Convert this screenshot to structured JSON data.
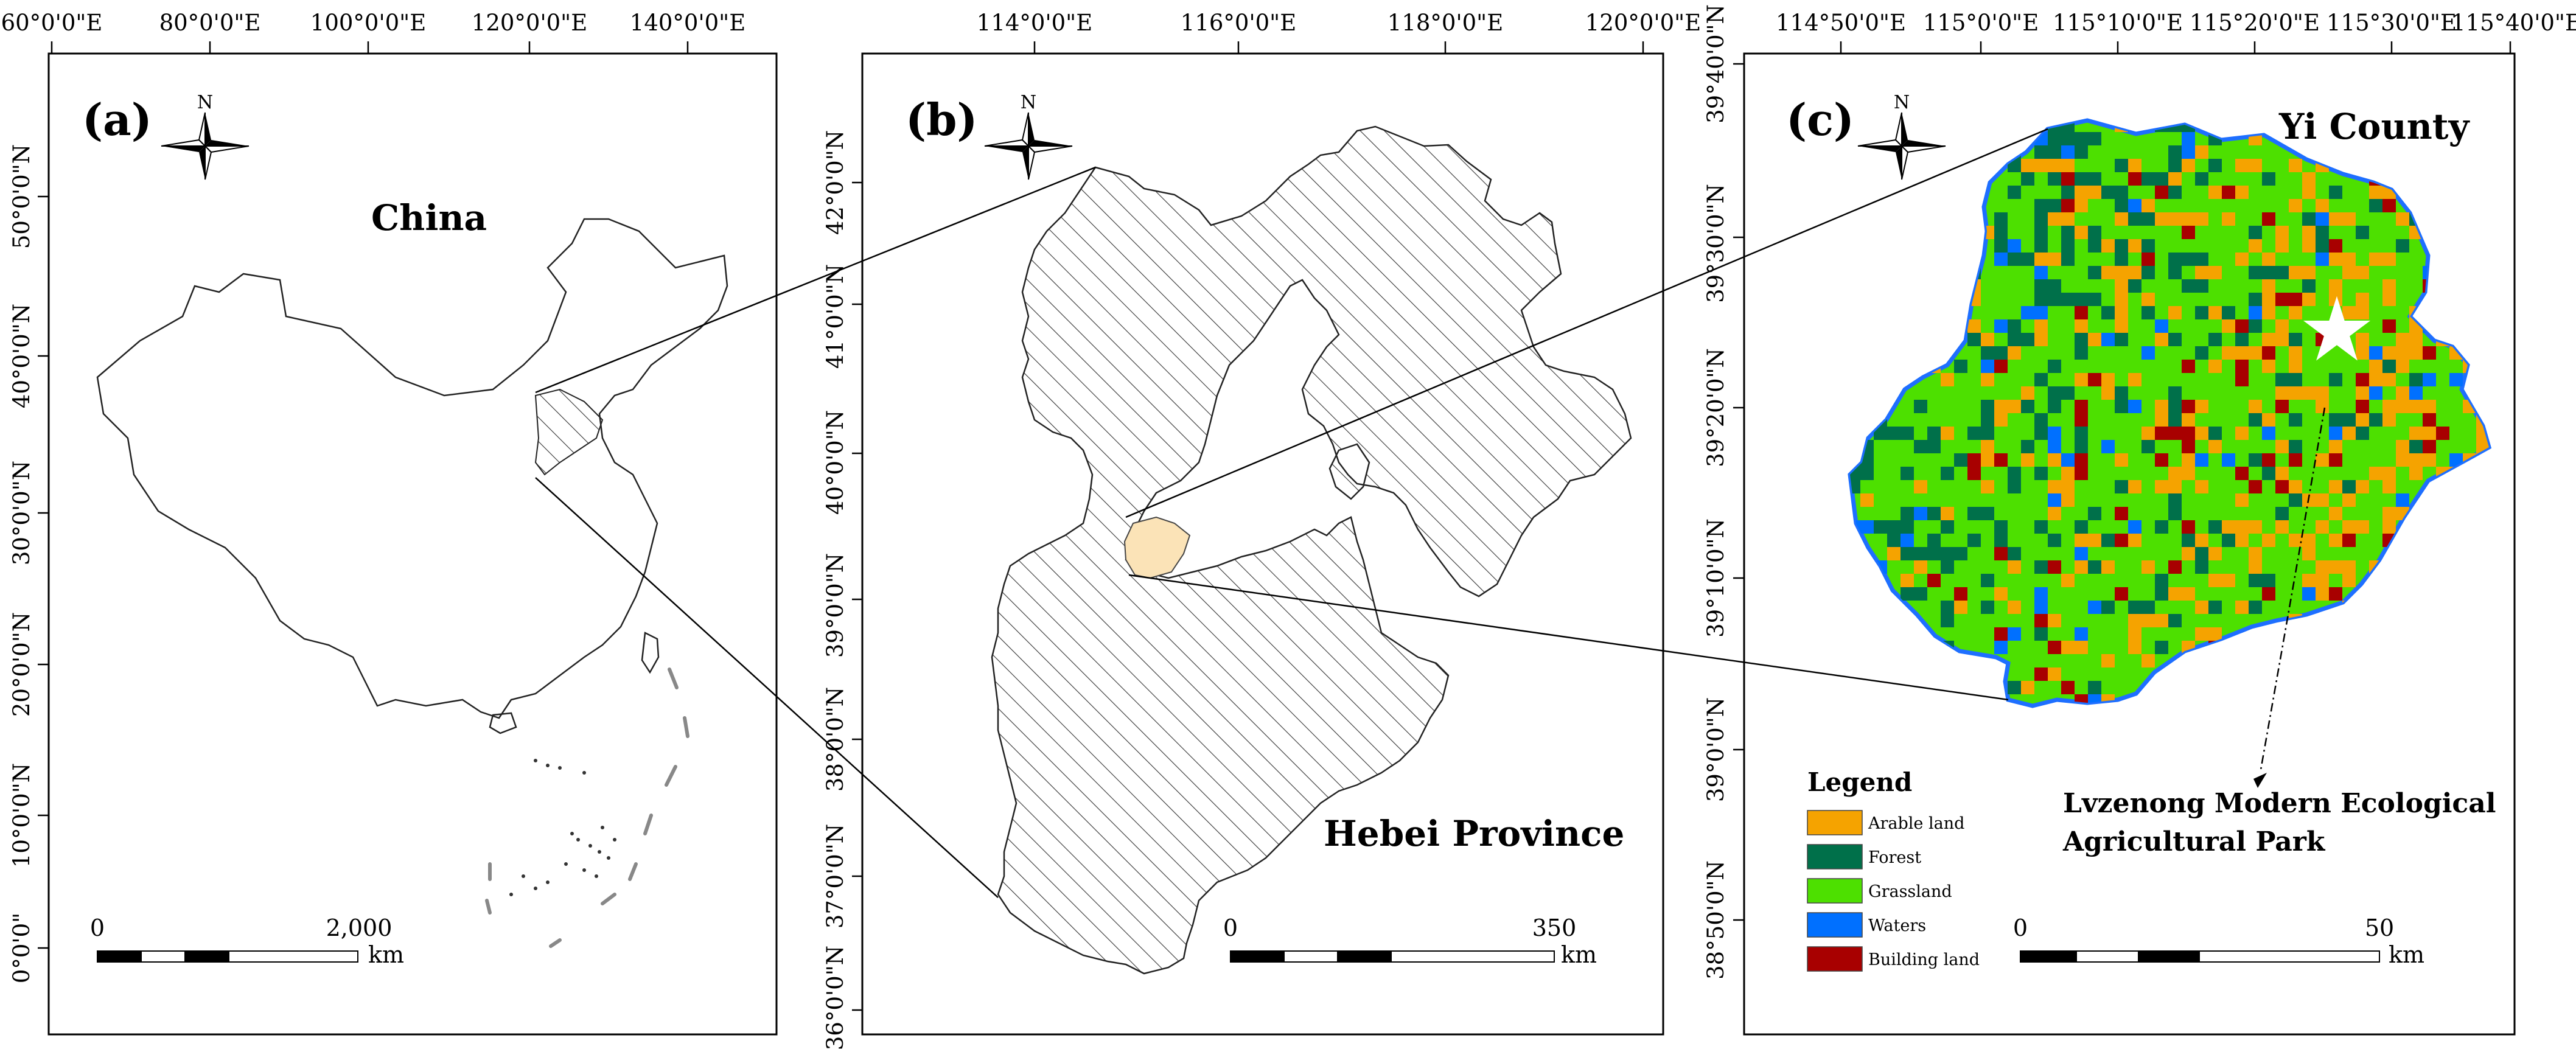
{
  "panel_a": {
    "label": "(a)",
    "title": "China",
    "top_ticks": [
      "60°0'0\"E",
      "80°0'0\"E",
      "100°0'0\"E",
      "120°0'0\"E",
      "140°0'0\"E"
    ],
    "left_ticks": [
      "50°0'0\"N",
      "40°0'0\"N",
      "30°0'0\"N",
      "20°0'0\"N",
      "10°0'0\"N",
      "0°0'0\""
    ],
    "scale_start": "0",
    "scale_end": "2,000",
    "scale_unit": "km",
    "north": "N"
  },
  "panel_b": {
    "label": "(b)",
    "title": "Hebei Province",
    "top_ticks": [
      "114°0'0\"E",
      "116°0'0\"E",
      "118°0'0\"E",
      "120°0'0\"E"
    ],
    "left_ticks": [
      "42°0'0\"N",
      "41°0'0\"N",
      "40°0'0\"N",
      "39°0'0\"N",
      "38°0'0\"N",
      "37°0'0\"N",
      "36°0'0\"N"
    ],
    "scale_start": "0",
    "scale_end": "350",
    "scale_unit": "km",
    "north": "N"
  },
  "panel_c": {
    "label": "(c)",
    "title": "Yi County",
    "top_ticks": [
      "114°50'0\"E",
      "115°0'0\"E",
      "115°10'0\"E",
      "115°20'0\"E",
      "115°30'0\"E",
      "115°40'0\"E"
    ],
    "left_ticks": [
      "39°40'0\"N",
      "39°30'0\"N",
      "39°20'0\"N",
      "39°10'0\"N",
      "39°0'0\"N",
      "38°50'0\"N"
    ],
    "scale_start": "0",
    "scale_end": "50",
    "scale_unit": "km",
    "north": "N",
    "annotation_line1": "Lvzenong Modern Ecological",
    "annotation_line2": "Agricultural Park"
  },
  "legend": {
    "title": "Legend",
    "items": [
      {
        "label": "Arable land",
        "color": "#f5a300"
      },
      {
        "label": "Forest",
        "color": "#00704a"
      },
      {
        "label": "Grassland",
        "color": "#4de000"
      },
      {
        "label": "Waters",
        "color": "#0070ff"
      },
      {
        "label": "Building land",
        "color": "#a80000"
      }
    ]
  },
  "colors": {
    "hebei_hatch": "#333333",
    "yi_county_highlight": "#fbe3b7",
    "waters_border": "#1e6fff"
  }
}
